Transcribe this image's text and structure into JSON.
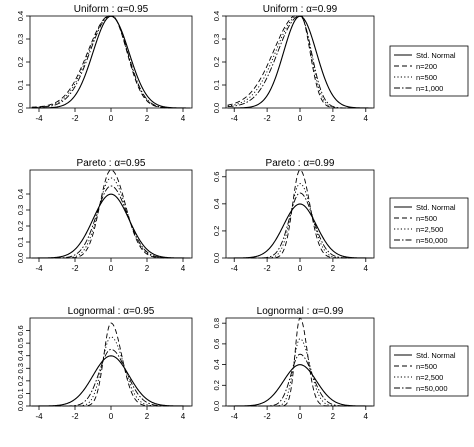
{
  "chart_data": [
    {
      "type": "line",
      "title": "Uniform : α=0.95",
      "xlim": [
        -4.5,
        4.5
      ],
      "ylim": [
        0,
        0.4
      ],
      "xticks": [
        "-4",
        "-2",
        "0",
        "2",
        "4"
      ],
      "yticks": [
        "0.0",
        "0.1",
        "0.2",
        "0.3",
        "0.4"
      ],
      "grid": false,
      "series": [
        {
          "name": "Std. Normal",
          "dash": "solid",
          "peak": 0.399,
          "sd_left": 1.0,
          "sd_right": 1.0,
          "tail": 0.0
        },
        {
          "name": "n=200",
          "dash": "dashed",
          "peak": 0.405,
          "sd_left": 1.25,
          "sd_right": 0.88,
          "tail": 0.012
        },
        {
          "name": "n=500",
          "dash": "dotted",
          "peak": 0.405,
          "sd_left": 1.2,
          "sd_right": 0.9,
          "tail": 0.01
        },
        {
          "name": "n=1,000",
          "dash": "dashdot",
          "peak": 0.403,
          "sd_left": 1.15,
          "sd_right": 0.92,
          "tail": 0.008
        }
      ]
    },
    {
      "type": "line",
      "title": "Uniform : α=0.99",
      "xlim": [
        -4.5,
        4.5
      ],
      "ylim": [
        0,
        0.4
      ],
      "xticks": [
        "-4",
        "-2",
        "0",
        "2",
        "4"
      ],
      "yticks": [
        "0.0",
        "0.1",
        "0.2",
        "0.3",
        "0.4"
      ],
      "grid": false,
      "series": [
        {
          "name": "Std. Normal",
          "dash": "solid",
          "peak": 0.399,
          "sd_left": 1.0,
          "sd_right": 1.0,
          "tail": 0.0
        },
        {
          "name": "n=200",
          "dash": "dashed",
          "peak": 0.41,
          "sd_left": 1.5,
          "sd_right": 0.6,
          "tail": 0.03
        },
        {
          "name": "n=500",
          "dash": "dotted",
          "peak": 0.405,
          "sd_left": 1.4,
          "sd_right": 0.65,
          "tail": 0.025
        },
        {
          "name": "n=1,000",
          "dash": "dashdot",
          "peak": 0.4,
          "sd_left": 1.3,
          "sd_right": 0.7,
          "tail": 0.02
        }
      ]
    },
    {
      "type": "line",
      "title": "Pareto : α=0.95",
      "xlim": [
        -4.5,
        4.5
      ],
      "ylim": [
        0,
        0.55
      ],
      "xticks": [
        "-4",
        "-2",
        "0",
        "2",
        "4"
      ],
      "yticks": [
        "0.0",
        "0.1",
        "0.2",
        "0.3",
        "0.4"
      ],
      "grid": false,
      "series": [
        {
          "name": "Std. Normal",
          "dash": "solid",
          "peak": 0.399,
          "sd_left": 1.0,
          "sd_right": 1.0,
          "tail": 0.0
        },
        {
          "name": "n=500",
          "dash": "dashed",
          "peak": 0.55,
          "sd_left": 0.62,
          "sd_right": 0.8,
          "tail": 0.0
        },
        {
          "name": "n=2,500",
          "dash": "dotted",
          "peak": 0.5,
          "sd_left": 0.7,
          "sd_right": 0.85,
          "tail": 0.0
        },
        {
          "name": "n=50,000",
          "dash": "dashdot",
          "peak": 0.45,
          "sd_left": 0.8,
          "sd_right": 0.9,
          "tail": 0.0
        }
      ]
    },
    {
      "type": "line",
      "title": "Pareto : α=0.99",
      "xlim": [
        -4.5,
        4.5
      ],
      "ylim": [
        0,
        0.65
      ],
      "xticks": [
        "-4",
        "-2",
        "0",
        "2",
        "4"
      ],
      "yticks": [
        "0.0",
        "0.2",
        "0.4",
        "0.6"
      ],
      "grid": false,
      "series": [
        {
          "name": "Std. Normal",
          "dash": "solid",
          "peak": 0.399,
          "sd_left": 1.0,
          "sd_right": 1.0,
          "tail": 0.0
        },
        {
          "name": "n=500",
          "dash": "dashed",
          "peak": 0.65,
          "sd_left": 0.45,
          "sd_right": 0.6,
          "tail": 0.0
        },
        {
          "name": "n=2,500",
          "dash": "dotted",
          "peak": 0.55,
          "sd_left": 0.55,
          "sd_right": 0.7,
          "tail": 0.0
        },
        {
          "name": "n=50,000",
          "dash": "dashdot",
          "peak": 0.48,
          "sd_left": 0.65,
          "sd_right": 0.8,
          "tail": 0.0
        }
      ]
    },
    {
      "type": "line",
      "title": "Lognormal : α=0.95",
      "xlim": [
        -4.5,
        4.5
      ],
      "ylim": [
        0,
        0.7
      ],
      "xticks": [
        "-4",
        "-2",
        "0",
        "2",
        "4"
      ],
      "yticks": [
        "0.0",
        "0.1",
        "0.2",
        "0.3",
        "0.4",
        "0.5",
        "0.6"
      ],
      "grid": false,
      "series": [
        {
          "name": "Std. Normal",
          "dash": "solid",
          "peak": 0.399,
          "sd_left": 1.0,
          "sd_right": 1.0,
          "tail": 0.0
        },
        {
          "name": "n=500",
          "dash": "dashed",
          "peak": 0.66,
          "sd_left": 0.4,
          "sd_right": 0.6,
          "tail": 0.0
        },
        {
          "name": "n=2,500",
          "dash": "dotted",
          "peak": 0.55,
          "sd_left": 0.5,
          "sd_right": 0.7,
          "tail": 0.0
        },
        {
          "name": "n=50,000",
          "dash": "dashdot",
          "peak": 0.45,
          "sd_left": 0.65,
          "sd_right": 0.85,
          "tail": 0.0
        }
      ]
    },
    {
      "type": "line",
      "title": "Lognormal : α=0.99",
      "xlim": [
        -4.5,
        4.5
      ],
      "ylim": [
        0,
        0.85
      ],
      "xticks": [
        "-4",
        "-2",
        "0",
        "2",
        "4"
      ],
      "yticks": [
        "0.0",
        "0.2",
        "0.4",
        "0.6",
        "0.8"
      ],
      "grid": false,
      "series": [
        {
          "name": "Std. Normal",
          "dash": "solid",
          "peak": 0.399,
          "sd_left": 1.0,
          "sd_right": 1.0,
          "tail": 0.0
        },
        {
          "name": "n=500",
          "dash": "dashed",
          "peak": 0.85,
          "sd_left": 0.3,
          "sd_right": 0.45,
          "tail": 0.0
        },
        {
          "name": "n=2,500",
          "dash": "dotted",
          "peak": 0.65,
          "sd_left": 0.4,
          "sd_right": 0.6,
          "tail": 0.0
        },
        {
          "name": "n=50,000",
          "dash": "dashdot",
          "peak": 0.5,
          "sd_left": 0.55,
          "sd_right": 0.75,
          "tail": 0.0
        }
      ]
    }
  ],
  "legends": [
    {
      "entries": [
        "Std. Normal",
        "n=200",
        "n=500",
        "n=1,000"
      ],
      "placement": "right"
    },
    {
      "entries": [
        "Std. Normal",
        "n=500",
        "n=2,500",
        "n=50,000"
      ],
      "placement": "right"
    },
    {
      "entries": [
        "Std. Normal",
        "n=500",
        "n=2,500",
        "n=50,000"
      ],
      "placement": "right"
    }
  ]
}
